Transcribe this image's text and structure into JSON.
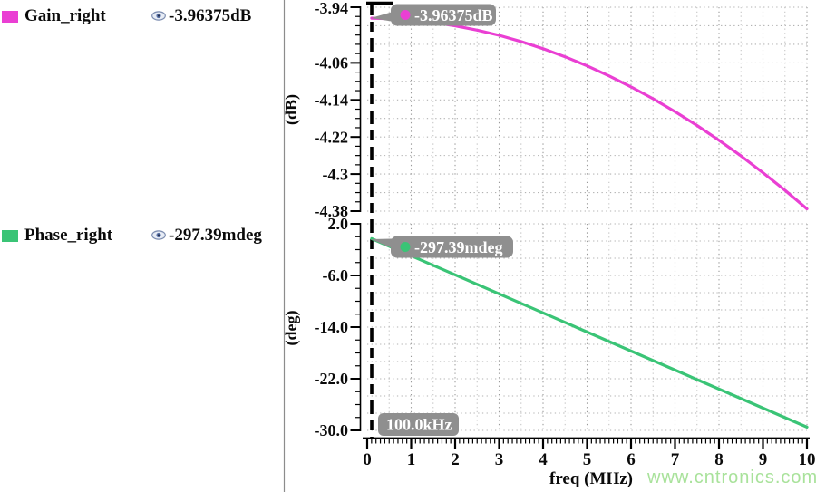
{
  "signals": [
    {
      "name": "Gain_right",
      "value": "-3.96375dB",
      "color": "#ea3fd3"
    },
    {
      "name": "Phase_right",
      "value": "-297.39mdeg",
      "color": "#3ac476"
    }
  ],
  "marker_freq": {
    "label": "100.0kHz",
    "x_mhz": 0.1
  },
  "watermark": "www.cntronics.com",
  "colors": {
    "tooltip_bg": "#8f8f8f",
    "grid_light": "#c6c6c6",
    "grid_dark": "#9a9a9a",
    "grid_horiz": "#b2b2b2",
    "axis": "#000000",
    "divider": "#8c8c8c"
  },
  "chart_data": [
    {
      "type": "line",
      "title": "",
      "ylabel": "(dB)",
      "xlabel": "",
      "xlim": [
        0,
        10
      ],
      "ylim": [
        -4.38,
        -3.94
      ],
      "grid": true,
      "yticks": {
        "values": [
          -3.94,
          -4.06,
          -4.14,
          -4.22,
          -4.3,
          -4.38
        ],
        "labels": [
          "-3.94",
          "-4.06",
          "-4.14",
          "-4.22",
          "-4.3",
          "-4.38"
        ]
      },
      "xticks": {
        "values": [
          0,
          1,
          2,
          3,
          4,
          5,
          6,
          7,
          8,
          9,
          10
        ],
        "labels": [
          "0",
          "1",
          "2",
          "3",
          "4",
          "5",
          "6",
          "7",
          "8",
          "9",
          "10"
        ]
      },
      "series": [
        {
          "name": "Gain_right",
          "color": "#ea3fd3",
          "x": [
            0.1,
            0.5,
            1,
            1.5,
            2,
            2.5,
            3,
            3.5,
            4,
            4.5,
            5,
            5.5,
            6,
            6.5,
            7,
            7.5,
            8,
            8.5,
            9,
            9.5,
            10
          ],
          "y": [
            -3.9637,
            -3.9647,
            -3.9678,
            -3.973,
            -3.9802,
            -3.9894,
            -4.0007,
            -4.0141,
            -4.0295,
            -4.047,
            -4.0666,
            -4.0882,
            -4.1118,
            -4.1376,
            -4.1653,
            -4.1952,
            -4.2271,
            -4.261,
            -4.297,
            -4.3351,
            -4.3752
          ]
        }
      ],
      "marker": {
        "x_mhz": 0.1,
        "value": -3.96375,
        "label": "-3.96375dB"
      }
    },
    {
      "type": "line",
      "title": "",
      "ylabel": "(deg)",
      "xlabel": "freq (MHz)",
      "xlim": [
        0,
        10
      ],
      "ylim": [
        -30.0,
        2.0
      ],
      "grid": true,
      "yticks": {
        "values": [
          2.0,
          -6.0,
          -14.0,
          -22.0,
          -30.0
        ],
        "labels": [
          "2.0",
          "-6.0",
          "-14.0",
          "-22.0",
          "-30.0"
        ]
      },
      "xticks": {
        "values": [
          0,
          1,
          2,
          3,
          4,
          5,
          6,
          7,
          8,
          9,
          10
        ],
        "labels": [
          "0",
          "1",
          "2",
          "3",
          "4",
          "5",
          "6",
          "7",
          "8",
          "9",
          "10"
        ]
      },
      "series": [
        {
          "name": "Phase_right",
          "color": "#3ac476",
          "x": [
            0.1,
            1,
            2,
            3,
            4,
            5,
            6,
            7,
            8,
            9,
            10
          ],
          "y": [
            -0.2974,
            -2.952,
            -5.902,
            -8.852,
            -11.801,
            -14.751,
            -17.701,
            -20.651,
            -23.6,
            -26.55,
            -29.5
          ]
        }
      ],
      "marker": {
        "x_mhz": 0.1,
        "value": -0.29739,
        "label": "-297.39mdeg"
      }
    }
  ]
}
